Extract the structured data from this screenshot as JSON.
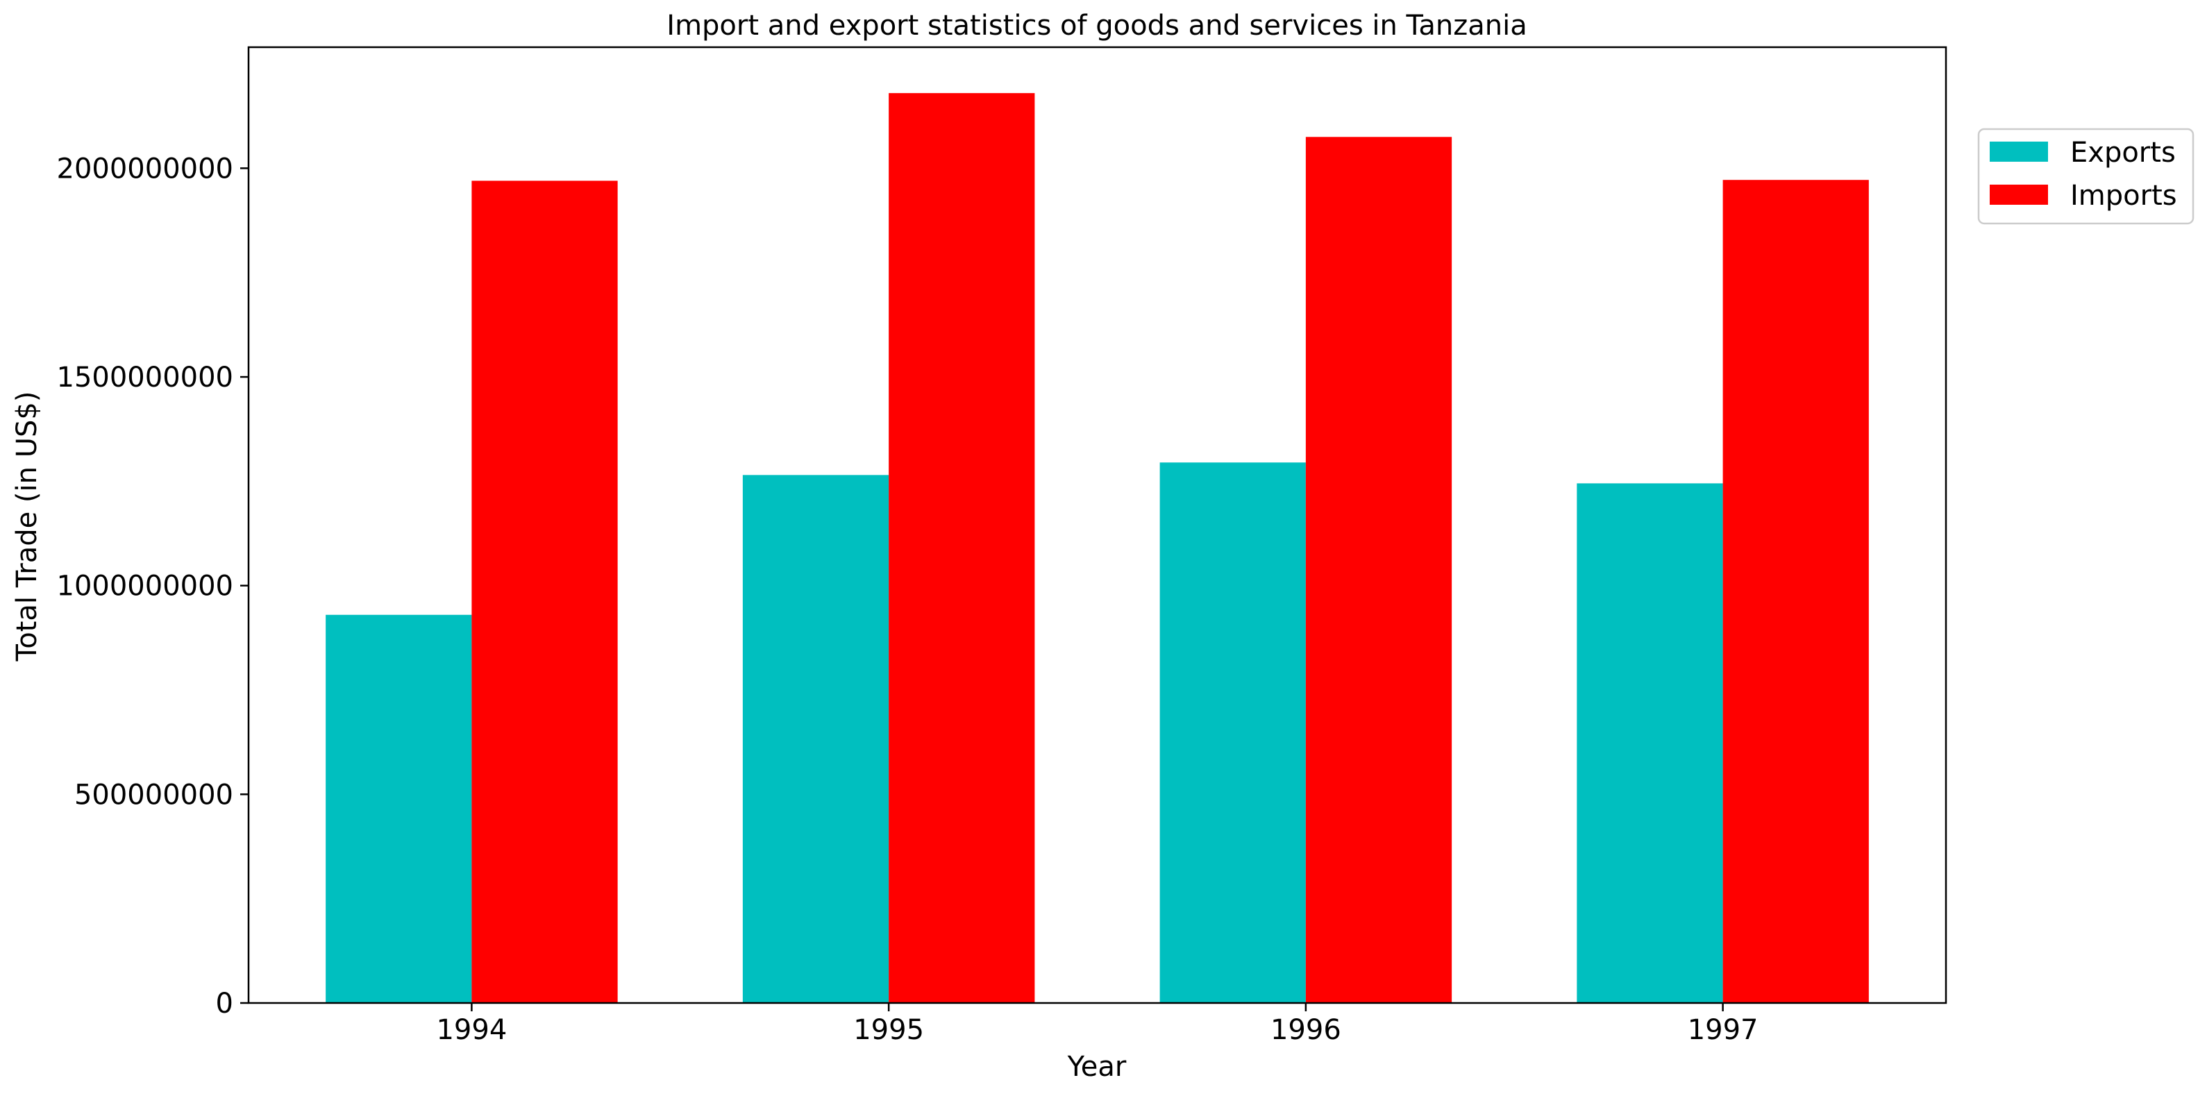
{
  "chart_data": {
    "type": "bar",
    "title": "Import and export statistics of goods and services in Tanzania",
    "xlabel": "Year",
    "ylabel": "Total Trade (in US$)",
    "categories": [
      "1994",
      "1995",
      "1996",
      "1997"
    ],
    "series": [
      {
        "name": "Exports",
        "color": "#00bfbf",
        "values": [
          930000000,
          1265000000,
          1295000000,
          1245000000
        ]
      },
      {
        "name": "Imports",
        "color": "#ff0000",
        "values": [
          1970000000,
          2180000000,
          2075000000,
          1972000000
        ]
      }
    ],
    "ylim": [
      0,
      2290000000
    ],
    "yticks": [
      0,
      500000000,
      1000000000,
      1500000000,
      2000000000
    ],
    "ytick_labels": [
      "0",
      "500000000",
      "1000000000",
      "1500000000",
      "2000000000"
    ],
    "grid": false,
    "legend": {
      "position": "outside top-right",
      "entries": [
        "Exports",
        "Imports"
      ]
    }
  }
}
